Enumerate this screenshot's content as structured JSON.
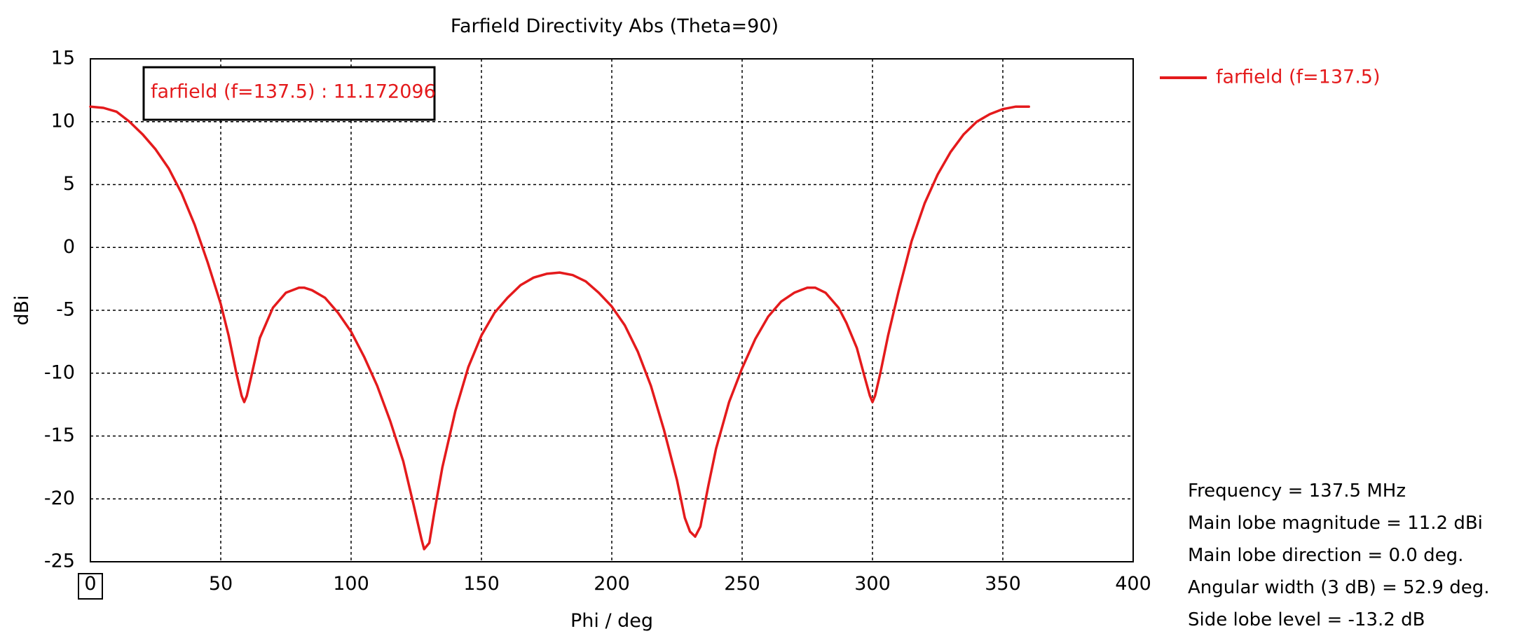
{
  "chart_data": {
    "type": "line",
    "title": "Farfield Directivity Abs (Theta=90)",
    "xlabel": "Phi / deg",
    "ylabel": "dBi",
    "xlim": [
      0,
      400
    ],
    "ylim": [
      -25,
      15
    ],
    "xticks": [
      0,
      50,
      100,
      150,
      200,
      250,
      300,
      350,
      400
    ],
    "yticks": [
      15,
      10,
      5,
      0,
      -5,
      -10,
      -15,
      -20,
      -25
    ],
    "grid": true,
    "legend_position": "right",
    "series": [
      {
        "name": "farfield (f=137.5)",
        "color": "#e41a1c",
        "points": [
          [
            0,
            11.2
          ],
          [
            5,
            11.1
          ],
          [
            10,
            10.8
          ],
          [
            15,
            10.0
          ],
          [
            20,
            9.0
          ],
          [
            25,
            7.8
          ],
          [
            30,
            6.3
          ],
          [
            35,
            4.3
          ],
          [
            40,
            1.8
          ],
          [
            45,
            -1.2
          ],
          [
            50,
            -4.5
          ],
          [
            53,
            -7.0
          ],
          [
            56,
            -10.0
          ],
          [
            58,
            -11.8
          ],
          [
            59,
            -12.3
          ],
          [
            60,
            -11.8
          ],
          [
            62,
            -10.0
          ],
          [
            65,
            -7.2
          ],
          [
            70,
            -4.8
          ],
          [
            75,
            -3.6
          ],
          [
            80,
            -3.2
          ],
          [
            82,
            -3.2
          ],
          [
            85,
            -3.4
          ],
          [
            90,
            -4.0
          ],
          [
            95,
            -5.2
          ],
          [
            100,
            -6.7
          ],
          [
            105,
            -8.7
          ],
          [
            110,
            -11.0
          ],
          [
            115,
            -13.8
          ],
          [
            120,
            -17.0
          ],
          [
            124,
            -20.5
          ],
          [
            127,
            -23.2
          ],
          [
            128,
            -24.0
          ],
          [
            130,
            -23.5
          ],
          [
            132,
            -21.0
          ],
          [
            135,
            -17.5
          ],
          [
            140,
            -13.0
          ],
          [
            145,
            -9.5
          ],
          [
            150,
            -7.0
          ],
          [
            155,
            -5.2
          ],
          [
            160,
            -4.0
          ],
          [
            165,
            -3.0
          ],
          [
            170,
            -2.4
          ],
          [
            175,
            -2.1
          ],
          [
            180,
            -2.0
          ],
          [
            185,
            -2.2
          ],
          [
            190,
            -2.7
          ],
          [
            195,
            -3.6
          ],
          [
            200,
            -4.7
          ],
          [
            205,
            -6.2
          ],
          [
            210,
            -8.3
          ],
          [
            215,
            -11.0
          ],
          [
            220,
            -14.5
          ],
          [
            225,
            -18.5
          ],
          [
            228,
            -21.5
          ],
          [
            230,
            -22.6
          ],
          [
            232,
            -23.0
          ],
          [
            234,
            -22.2
          ],
          [
            237,
            -19.0
          ],
          [
            240,
            -16.0
          ],
          [
            245,
            -12.3
          ],
          [
            250,
            -9.6
          ],
          [
            255,
            -7.3
          ],
          [
            260,
            -5.5
          ],
          [
            265,
            -4.3
          ],
          [
            270,
            -3.6
          ],
          [
            275,
            -3.2
          ],
          [
            278,
            -3.2
          ],
          [
            282,
            -3.6
          ],
          [
            287,
            -4.8
          ],
          [
            290,
            -6.0
          ],
          [
            294,
            -8.0
          ],
          [
            297,
            -10.3
          ],
          [
            299,
            -11.8
          ],
          [
            300,
            -12.3
          ],
          [
            301,
            -11.8
          ],
          [
            303,
            -10.0
          ],
          [
            306,
            -7.0
          ],
          [
            310,
            -3.5
          ],
          [
            315,
            0.5
          ],
          [
            320,
            3.5
          ],
          [
            325,
            5.8
          ],
          [
            330,
            7.6
          ],
          [
            335,
            9.0
          ],
          [
            340,
            10.0
          ],
          [
            345,
            10.6
          ],
          [
            350,
            11.0
          ],
          [
            355,
            11.2
          ],
          [
            360,
            11.2
          ]
        ]
      }
    ],
    "marker_label": "farfield (f=137.5) : 11.172096",
    "x_start_marker": "0",
    "info": [
      {
        "label": "Frequency = ",
        "value": "137.5 MHz"
      },
      {
        "label": "Main lobe magnitude = ",
        "value": "11.2 dBi"
      },
      {
        "label": "Main lobe direction = ",
        "value": "0.0 deg."
      },
      {
        "label": "Angular width (3 dB) = ",
        "value": "52.9 deg."
      },
      {
        "label": "Side lobe level = ",
        "value": "-13.2 dB"
      }
    ]
  }
}
